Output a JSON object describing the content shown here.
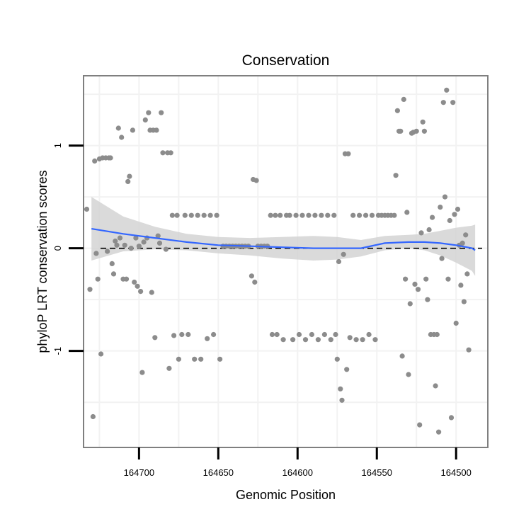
{
  "chart_data": {
    "type": "scatter",
    "title": "Conservation",
    "xlabel": "Genomic Position",
    "ylabel": "phyloP LRT conservation scores",
    "x_reversed": true,
    "xlim": [
      164480,
      164735
    ],
    "ylim": [
      -1.94,
      1.68
    ],
    "x_ticks": [
      164700,
      164650,
      164600,
      164550,
      164500
    ],
    "x_tick_labels": [
      "164700",
      "164650",
      "164600",
      "164550",
      "164500"
    ],
    "y_ticks": [
      1,
      0,
      -1
    ],
    "y_tick_labels": [
      "1",
      "0",
      "-1"
    ],
    "reference_line": {
      "y": 0,
      "style": "dashed"
    },
    "colors": {
      "points": "#8c8c8c",
      "smooth": "#3366ff",
      "band": "#d3d3d3",
      "panel_border": "#7f7f7f",
      "grid": "#f2f2f2"
    },
    "smooth": {
      "method": "loess",
      "x": [
        164730,
        164710,
        164690,
        164670,
        164650,
        164630,
        164610,
        164590,
        164575,
        164560,
        164545,
        164530,
        164520,
        164510,
        164500,
        164490,
        164488
      ],
      "y": [
        0.19,
        0.14,
        0.1,
        0.06,
        0.03,
        0.02,
        0.01,
        0.0,
        0.0,
        0.0,
        0.05,
        0.06,
        0.06,
        0.05,
        0.03,
        0.0,
        -0.02
      ],
      "lower": [
        -0.12,
        -0.03,
        -0.01,
        -0.02,
        -0.05,
        -0.07,
        -0.1,
        -0.12,
        -0.11,
        -0.08,
        -0.02,
        0.0,
        -0.02,
        -0.07,
        -0.14,
        -0.22,
        -0.27
      ],
      "upper": [
        0.5,
        0.31,
        0.21,
        0.14,
        0.11,
        0.1,
        0.11,
        0.12,
        0.11,
        0.08,
        0.12,
        0.13,
        0.14,
        0.17,
        0.2,
        0.22,
        0.23
      ]
    },
    "points": [
      [
        164733,
        0.38
      ],
      [
        164731,
        -0.4
      ],
      [
        164729,
        -1.64
      ],
      [
        164728,
        0.85
      ],
      [
        164727,
        -0.05
      ],
      [
        164726,
        -0.3
      ],
      [
        164725,
        0.87
      ],
      [
        164724,
        -1.03
      ],
      [
        164723,
        0.88
      ],
      [
        164721,
        0.88
      ],
      [
        164720,
        -0.03
      ],
      [
        164719,
        0.88
      ],
      [
        164718,
        0.88
      ],
      [
        164717,
        -0.15
      ],
      [
        164716,
        -0.25
      ],
      [
        164715,
        0.07
      ],
      [
        164714,
        0.03
      ],
      [
        164713,
        1.17
      ],
      [
        164712,
        0.1
      ],
      [
        164711,
        1.08
      ],
      [
        164710,
        -0.3
      ],
      [
        164709,
        0.03
      ],
      [
        164708,
        -0.3
      ],
      [
        164707,
        0.65
      ],
      [
        164706,
        0.7
      ],
      [
        164705,
        0.0
      ],
      [
        164704,
        1.15
      ],
      [
        164703,
        -0.33
      ],
      [
        164702,
        0.1
      ],
      [
        164701,
        -0.37
      ],
      [
        164700,
        0.02
      ],
      [
        164699,
        -0.42
      ],
      [
        164698,
        -1.21
      ],
      [
        164697,
        0.06
      ],
      [
        164696,
        1.25
      ],
      [
        164695,
        0.1
      ],
      [
        164694,
        1.32
      ],
      [
        164693,
        1.15
      ],
      [
        164692,
        -0.43
      ],
      [
        164691,
        1.15
      ],
      [
        164690,
        -0.87
      ],
      [
        164689,
        1.15
      ],
      [
        164688,
        0.12
      ],
      [
        164687,
        0.05
      ],
      [
        164686,
        1.32
      ],
      [
        164685,
        0.93
      ],
      [
        164683,
        -0.01
      ],
      [
        164682,
        0.93
      ],
      [
        164681,
        -1.17
      ],
      [
        164680,
        0.93
      ],
      [
        164679,
        0.32
      ],
      [
        164678,
        -0.85
      ],
      [
        164676,
        0.32
      ],
      [
        164675,
        -1.08
      ],
      [
        164673,
        -0.84
      ],
      [
        164671,
        0.32
      ],
      [
        164669,
        -0.84
      ],
      [
        164667,
        0.32
      ],
      [
        164665,
        -1.08
      ],
      [
        164663,
        0.32
      ],
      [
        164661,
        -1.08
      ],
      [
        164659,
        0.32
      ],
      [
        164657,
        -0.88
      ],
      [
        164655,
        0.32
      ],
      [
        164653,
        -0.84
      ],
      [
        164651,
        0.32
      ],
      [
        164649,
        -1.08
      ],
      [
        164647,
        0.02
      ],
      [
        164645,
        0.02
      ],
      [
        164643,
        0.02
      ],
      [
        164641,
        0.02
      ],
      [
        164639,
        0.02
      ],
      [
        164637,
        0.02
      ],
      [
        164635,
        0.02
      ],
      [
        164633,
        0.02
      ],
      [
        164631,
        0.02
      ],
      [
        164629,
        -0.27
      ],
      [
        164628,
        0.67
      ],
      [
        164627,
        -0.33
      ],
      [
        164626,
        0.66
      ],
      [
        164625,
        0.02
      ],
      [
        164623,
        0.02
      ],
      [
        164621,
        0.02
      ],
      [
        164619,
        0.02
      ],
      [
        164617,
        0.32
      ],
      [
        164616,
        -0.84
      ],
      [
        164614,
        0.32
      ],
      [
        164613,
        -0.84
      ],
      [
        164611,
        0.32
      ],
      [
        164609,
        -0.89
      ],
      [
        164607,
        0.32
      ],
      [
        164605,
        0.32
      ],
      [
        164603,
        -0.89
      ],
      [
        164601,
        0.32
      ],
      [
        164599,
        -0.84
      ],
      [
        164597,
        0.32
      ],
      [
        164595,
        -0.89
      ],
      [
        164593,
        0.32
      ],
      [
        164591,
        -0.84
      ],
      [
        164589,
        0.32
      ],
      [
        164587,
        -0.89
      ],
      [
        164585,
        0.32
      ],
      [
        164583,
        -0.84
      ],
      [
        164581,
        0.32
      ],
      [
        164579,
        -0.89
      ],
      [
        164577,
        0.32
      ],
      [
        164576,
        -0.84
      ],
      [
        164575,
        -1.08
      ],
      [
        164574,
        -0.13
      ],
      [
        164573,
        -1.37
      ],
      [
        164572,
        -1.48
      ],
      [
        164571,
        -0.06
      ],
      [
        164570,
        0.92
      ],
      [
        164569,
        -1.18
      ],
      [
        164568,
        0.92
      ],
      [
        164567,
        -0.87
      ],
      [
        164565,
        0.32
      ],
      [
        164563,
        -0.89
      ],
      [
        164561,
        0.32
      ],
      [
        164559,
        -0.89
      ],
      [
        164557,
        0.32
      ],
      [
        164555,
        -0.84
      ],
      [
        164553,
        0.32
      ],
      [
        164551,
        -0.89
      ],
      [
        164549,
        0.32
      ],
      [
        164547,
        0.32
      ],
      [
        164545,
        0.32
      ],
      [
        164543,
        0.32
      ],
      [
        164541,
        0.32
      ],
      [
        164539,
        0.32
      ],
      [
        164538,
        0.71
      ],
      [
        164537,
        1.34
      ],
      [
        164536,
        1.14
      ],
      [
        164535,
        1.14
      ],
      [
        164534,
        -1.05
      ],
      [
        164533,
        1.45
      ],
      [
        164532,
        -0.3
      ],
      [
        164531,
        0.35
      ],
      [
        164530,
        -1.23
      ],
      [
        164529,
        -0.54
      ],
      [
        164528,
        1.12
      ],
      [
        164527,
        1.13
      ],
      [
        164526,
        -0.35
      ],
      [
        164525,
        1.14
      ],
      [
        164524,
        -0.4
      ],
      [
        164523,
        -1.72
      ],
      [
        164522,
        0.15
      ],
      [
        164521,
        1.23
      ],
      [
        164520,
        1.14
      ],
      [
        164519,
        -0.3
      ],
      [
        164518,
        -0.5
      ],
      [
        164517,
        0.18
      ],
      [
        164516,
        -0.84
      ],
      [
        164515,
        0.3
      ],
      [
        164514,
        -0.84
      ],
      [
        164513,
        -1.34
      ],
      [
        164512,
        -0.84
      ],
      [
        164511,
        -1.79
      ],
      [
        164510,
        0.4
      ],
      [
        164509,
        -0.1
      ],
      [
        164508,
        1.42
      ],
      [
        164507,
        0.5
      ],
      [
        164506,
        1.54
      ],
      [
        164505,
        -0.3
      ],
      [
        164504,
        0.27
      ],
      [
        164503,
        -1.65
      ],
      [
        164502,
        1.42
      ],
      [
        164501,
        0.33
      ],
      [
        164500,
        -0.73
      ],
      [
        164499,
        0.38
      ],
      [
        164498,
        0.03
      ],
      [
        164497,
        -0.36
      ],
      [
        164496,
        0.05
      ],
      [
        164495,
        -0.52
      ],
      [
        164494,
        0.13
      ],
      [
        164493,
        -0.25
      ],
      [
        164492,
        -0.99
      ]
    ]
  }
}
